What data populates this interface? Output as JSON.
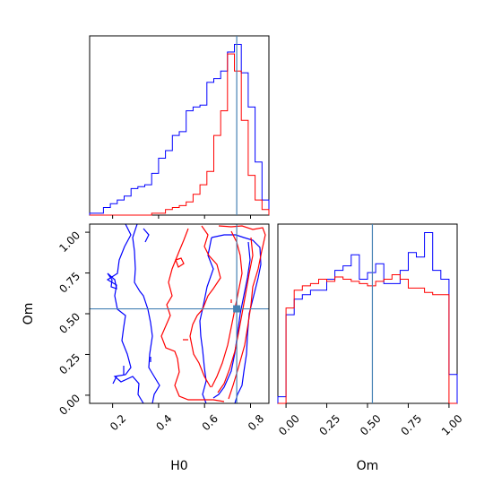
{
  "chart_data": {
    "type": "corner",
    "parameters": [
      "H0",
      "Om"
    ],
    "truths": {
      "H0": 0.74,
      "Om": 0.53
    },
    "truth_color": "#4682b4",
    "series_colors": [
      "#0000ff",
      "#ff0000"
    ],
    "h0_hist": {
      "xlim": [
        0.1,
        0.88
      ],
      "bins": [
        0.1,
        0.13,
        0.16,
        0.19,
        0.22,
        0.25,
        0.28,
        0.31,
        0.34,
        0.37,
        0.4,
        0.43,
        0.46,
        0.49,
        0.52,
        0.55,
        0.58,
        0.61,
        0.64,
        0.67,
        0.7,
        0.73,
        0.76,
        0.79,
        0.82,
        0.85,
        0.88
      ],
      "blue": [
        0.01,
        0.01,
        0.04,
        0.06,
        0.08,
        0.1,
        0.14,
        0.15,
        0.16,
        0.22,
        0.3,
        0.34,
        0.42,
        0.44,
        0.55,
        0.57,
        0.58,
        0.7,
        0.72,
        0.76,
        0.86,
        0.9,
        0.75,
        0.57,
        0.28,
        0.08
      ],
      "red": [
        0.0,
        0.0,
        0.0,
        0.0,
        0.0,
        0.0,
        0.0,
        0.0,
        0.0,
        0.01,
        0.01,
        0.03,
        0.04,
        0.05,
        0.07,
        0.11,
        0.16,
        0.23,
        0.42,
        0.55,
        0.85,
        0.76,
        0.5,
        0.21,
        0.08,
        0.03
      ]
    },
    "om_hist": {
      "xlim": [
        -0.05,
        1.05
      ],
      "bins": [
        -0.05,
        0.0,
        0.05,
        0.1,
        0.15,
        0.2,
        0.25,
        0.3,
        0.35,
        0.4,
        0.45,
        0.5,
        0.55,
        0.6,
        0.65,
        0.7,
        0.75,
        0.8,
        0.85,
        0.9,
        0.95,
        1.0,
        1.05
      ],
      "blue": [
        0.03,
        0.4,
        0.47,
        0.49,
        0.51,
        0.51,
        0.56,
        0.6,
        0.62,
        0.67,
        0.56,
        0.59,
        0.63,
        0.54,
        0.54,
        0.6,
        0.68,
        0.66,
        0.77,
        0.6,
        0.56,
        0.13
      ],
      "red": [
        0.0,
        0.43,
        0.51,
        0.53,
        0.54,
        0.56,
        0.55,
        0.57,
        0.56,
        0.55,
        0.54,
        0.53,
        0.55,
        0.56,
        0.58,
        0.56,
        0.52,
        0.52,
        0.5,
        0.49,
        0.49,
        0.0
      ]
    },
    "contour": {
      "xlim": [
        0.1,
        0.88
      ],
      "ylim": [
        -0.05,
        1.05
      ],
      "xticks": [
        0.2,
        0.4,
        0.6,
        0.8
      ],
      "xticklabels": [
        "0.2",
        "0.4",
        "0.6",
        "0.8"
      ],
      "yticks": [
        0.0,
        0.25,
        0.5,
        0.75,
        1.0
      ],
      "yticklabels": [
        "0.00",
        "0.25",
        "0.50",
        "0.75",
        "1.00"
      ]
    },
    "om_xticks": [
      0.0,
      0.25,
      0.5,
      0.75,
      1.0
    ],
    "om_xticklabels": [
      "0.00",
      "0.25",
      "0.50",
      "0.75",
      "1.00"
    ],
    "xlabels": [
      "H0",
      "Om"
    ],
    "ylabel": "Om"
  }
}
